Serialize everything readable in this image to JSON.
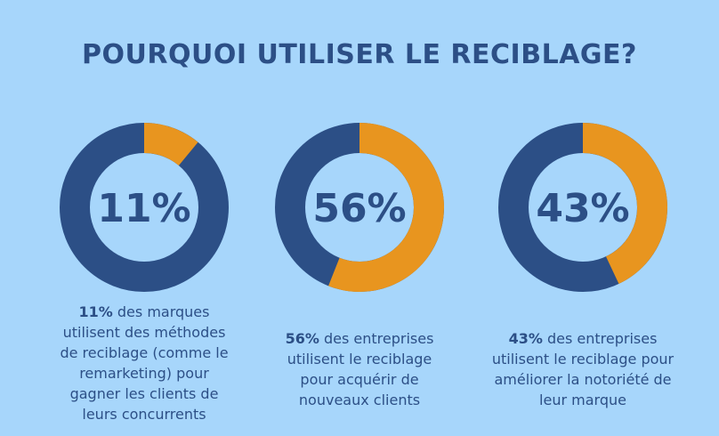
{
  "title": "POURQUOI UTILISER LE RECIBLAGE?",
  "colors": {
    "background": "#a7d6fb",
    "primary": "#2c4f86",
    "accent": "#e8951f"
  },
  "chart_data": {
    "type": "pie",
    "charts": [
      {
        "value": 11,
        "label": "11%",
        "caption_bold": "11%",
        "caption_text": " des marques utilisent des méthodes de reciblage (comme le remarketing) pour gagner les clients de leurs concurrents"
      },
      {
        "value": 56,
        "label": "56%",
        "caption_bold": "56%",
        "caption_text": " des entreprises utilisent le reciblage pour acquérir de nouveaux clients"
      },
      {
        "value": 43,
        "label": "43%",
        "caption_bold": "43%",
        "caption_text": " des entreprises utilisent le reciblage pour améliorer la notoriété de leur marque"
      }
    ]
  }
}
